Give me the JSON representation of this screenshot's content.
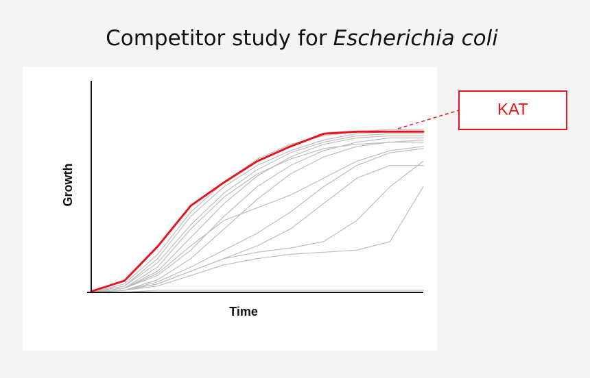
{
  "chart_data": {
    "type": "line",
    "title": "Competitor study for",
    "title_species": "Escherichia coli",
    "xlabel": "Time",
    "ylabel": "Growth",
    "annotation": "KAT",
    "x": [
      0,
      10,
      20,
      30,
      40,
      50,
      60,
      70,
      80,
      90,
      100
    ],
    "xlim": [
      0,
      100
    ],
    "ylim": [
      0,
      100
    ],
    "grid": false,
    "series": [
      {
        "color": "#bdbdbd",
        "values": [
          0,
          4,
          18,
          38,
          52,
          63,
          70,
          74,
          76,
          77,
          77
        ]
      },
      {
        "color": "#bdbdbd",
        "values": [
          0,
          3,
          14,
          32,
          47,
          58,
          66,
          71,
          74,
          75,
          75
        ]
      },
      {
        "color": "#bdbdbd",
        "values": [
          0,
          2,
          10,
          26,
          42,
          55,
          64,
          70,
          73,
          74,
          74
        ]
      },
      {
        "color": "#bdbdbd",
        "values": [
          0,
          2,
          8,
          20,
          36,
          50,
          60,
          67,
          71,
          73,
          73
        ]
      },
      {
        "color": "#bdbdbd",
        "values": [
          0,
          1,
          6,
          16,
          30,
          44,
          56,
          64,
          69,
          71,
          72
        ]
      },
      {
        "color": "#bdbdbd",
        "values": [
          0,
          2,
          9,
          22,
          34,
          40,
          46,
          54,
          62,
          67,
          69
        ]
      },
      {
        "color": "#bdbdbd",
        "values": [
          0,
          1,
          5,
          12,
          20,
          28,
          38,
          50,
          60,
          66,
          68
        ]
      },
      {
        "color": "#bdbdbd",
        "values": [
          0,
          1,
          4,
          10,
          16,
          22,
          30,
          42,
          54,
          60,
          60
        ]
      },
      {
        "color": "#bdbdbd",
        "values": [
          0,
          1,
          4,
          10,
          16,
          19,
          21,
          24,
          34,
          50,
          62
        ]
      },
      {
        "color": "#bdbdbd",
        "values": [
          0,
          1,
          3,
          8,
          13,
          16,
          18,
          19,
          20,
          24,
          50
        ]
      },
      {
        "color": "#bdbdbd",
        "values": [
          0,
          0,
          1,
          1,
          1,
          1,
          1,
          1,
          1,
          1,
          1
        ]
      },
      {
        "color": "#bdbdbd",
        "values": [
          0,
          3,
          16,
          36,
          50,
          60,
          67,
          72,
          75,
          76,
          76
        ]
      },
      {
        "color": "#bdbdbd",
        "values": [
          0,
          2,
          12,
          30,
          45,
          56,
          63,
          68,
          70,
          71,
          71
        ]
      },
      {
        "name": "KAT",
        "color": "#e8141b",
        "values": [
          0.5,
          5.5,
          21.7,
          41,
          52,
          62,
          69,
          75,
          76,
          76,
          76
        ]
      }
    ]
  }
}
